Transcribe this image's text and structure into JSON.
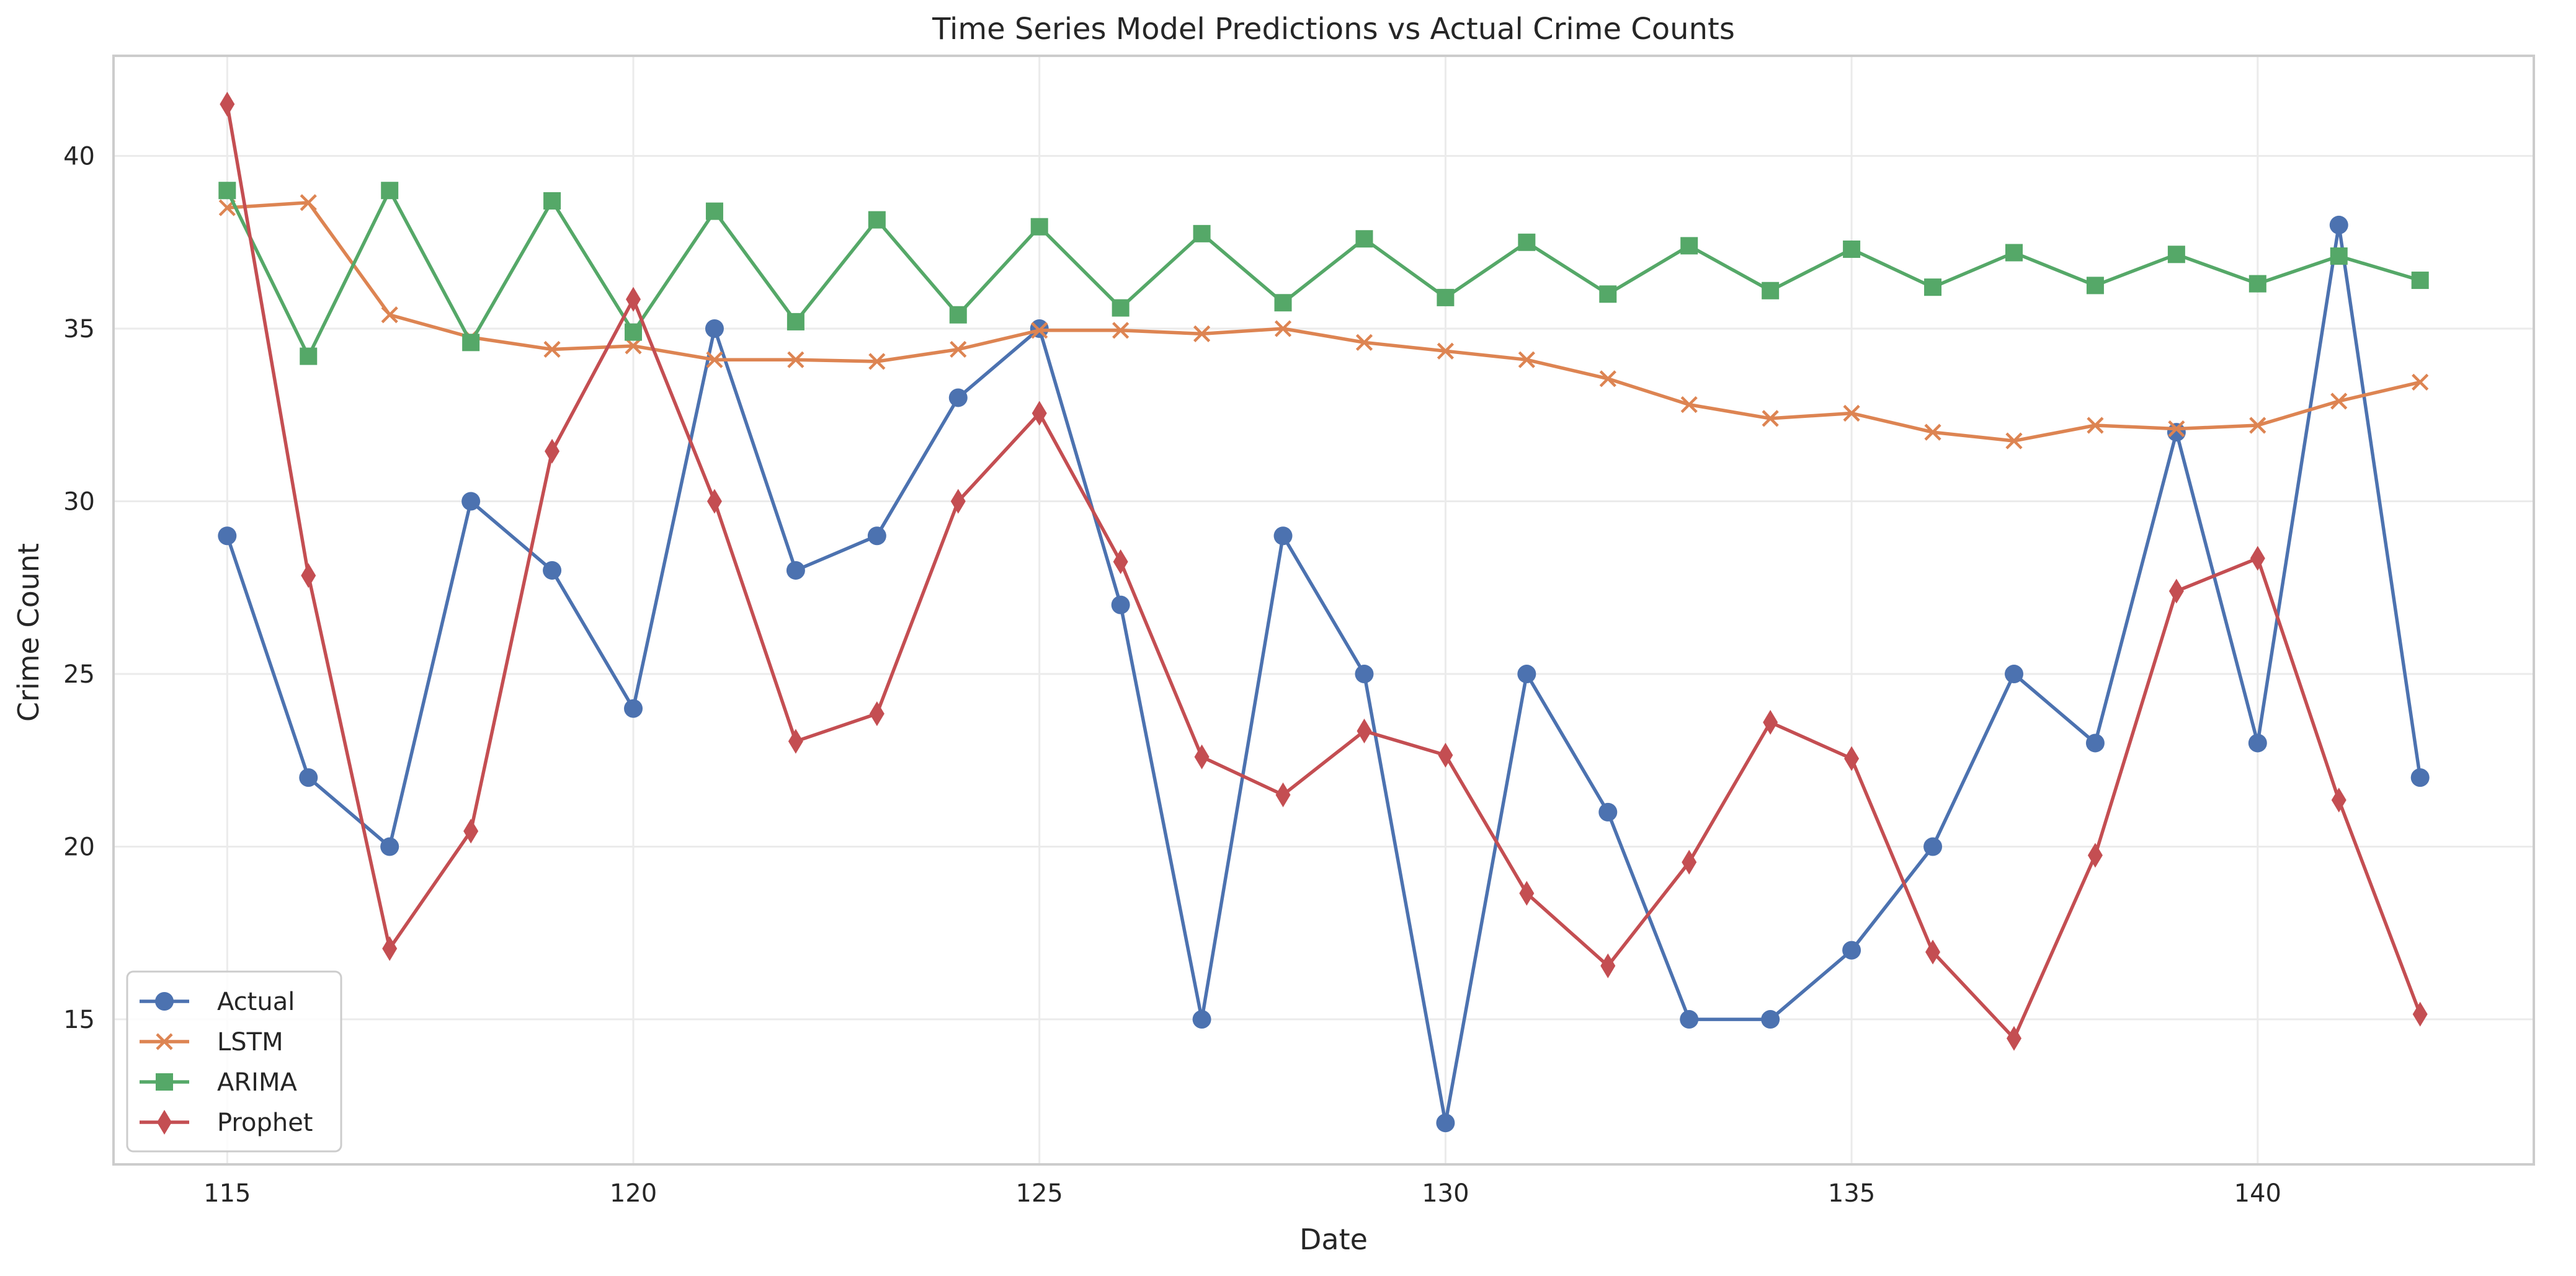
{
  "chart_data": {
    "type": "line",
    "title": "Time Series Model Predictions vs Actual Crime Counts",
    "xlabel": "Date",
    "ylabel": "Crime Count",
    "xlim": [
      113.6,
      143.4
    ],
    "ylim": [
      10.8,
      42.9
    ],
    "x_ticks": [
      115,
      120,
      125,
      130,
      135,
      140
    ],
    "y_ticks": [
      15,
      20,
      25,
      30,
      35,
      40
    ],
    "grid": true,
    "legend_position": "lower-left",
    "x": [
      115,
      116,
      117,
      118,
      119,
      120,
      121,
      122,
      123,
      124,
      125,
      126,
      127,
      128,
      129,
      130,
      131,
      132,
      133,
      134,
      135,
      136,
      137,
      138,
      139,
      140,
      141,
      142
    ],
    "series": [
      {
        "name": "Actual",
        "color": "#4c72b0",
        "marker": "circle",
        "values": [
          29,
          22,
          20,
          30,
          28,
          24,
          35,
          28,
          29,
          33,
          35,
          27,
          15,
          29,
          25,
          12,
          25,
          21,
          15,
          15,
          17,
          20,
          25,
          23,
          32,
          23,
          38,
          22
        ]
      },
      {
        "name": "LSTM",
        "color": "#dd8452",
        "marker": "x",
        "values": [
          38.5,
          38.65,
          35.4,
          34.75,
          34.4,
          34.5,
          34.1,
          34.1,
          34.05,
          34.4,
          34.95,
          34.95,
          34.85,
          35.0,
          34.6,
          34.35,
          34.1,
          33.55,
          32.8,
          32.4,
          32.55,
          32.0,
          31.75,
          32.2,
          32.1,
          32.2,
          32.9,
          33.45
        ]
      },
      {
        "name": "ARIMA",
        "color": "#55a868",
        "marker": "square",
        "values": [
          39.0,
          34.2,
          39.0,
          34.6,
          38.7,
          34.9,
          38.4,
          35.2,
          38.15,
          35.4,
          37.95,
          35.6,
          37.75,
          35.75,
          37.6,
          35.9,
          37.5,
          36.0,
          37.4,
          36.1,
          37.3,
          36.2,
          37.2,
          36.25,
          37.15,
          36.3,
          37.1,
          36.4
        ]
      },
      {
        "name": "Prophet",
        "color": "#c44e52",
        "marker": "diamond",
        "values": [
          41.5,
          27.85,
          17.05,
          20.45,
          31.45,
          35.85,
          30.0,
          23.05,
          23.85,
          30.0,
          32.55,
          28.25,
          22.6,
          21.5,
          23.35,
          22.65,
          18.65,
          16.55,
          19.55,
          23.6,
          22.55,
          16.95,
          14.45,
          19.75,
          27.4,
          28.35,
          21.35,
          15.15
        ]
      }
    ]
  }
}
